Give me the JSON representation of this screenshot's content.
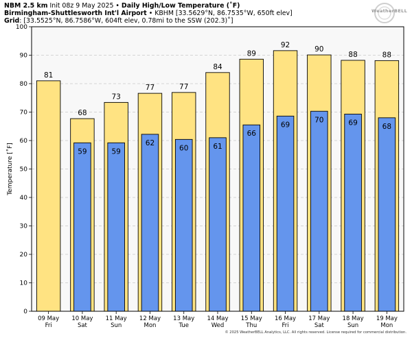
{
  "header": {
    "line1_bold": "NBM 2.5 km",
    "line1_init": " Init 08z 9 May 2025 • ",
    "line1_title": "Daily High/Low Temperature (˚F)",
    "line2_bold": "Birmingham-Shuttlesworth Int'l Airport",
    "line2_rest": " • KBHM [33.5629°N, 86.7535°W, 650ft elev]",
    "line3_bold": "Grid",
    "line3_rest": ": [33.5525°N, 86.7586°W, 604ft elev, 0.78mi to the SSW (202.3)˚]"
  },
  "logo": {
    "text": "WeatherBELL"
  },
  "copyright": "© 2025 WeatherBELL Analytics, LLC. All rights reserved. License required for commercial distribution.",
  "colors": {
    "high": "#ffe382",
    "low": "#6495ed",
    "plot_bg": "#f8f8f8",
    "grid": "#c8c8c8"
  },
  "chart_data": {
    "type": "bar",
    "ylabel": "Temperature [˚F]",
    "ylim": [
      0,
      100
    ],
    "yticks": [
      0,
      10,
      20,
      30,
      40,
      50,
      60,
      70,
      80,
      90,
      100
    ],
    "grid": true,
    "categories": [
      {
        "date": "09 May",
        "day": "Fri"
      },
      {
        "date": "10 May",
        "day": "Sat"
      },
      {
        "date": "11 May",
        "day": "Sun"
      },
      {
        "date": "12 May",
        "day": "Mon"
      },
      {
        "date": "13 May",
        "day": "Tue"
      },
      {
        "date": "14 May",
        "day": "Wed"
      },
      {
        "date": "15 May",
        "day": "Thu"
      },
      {
        "date": "16 May",
        "day": "Fri"
      },
      {
        "date": "17 May",
        "day": "Sat"
      },
      {
        "date": "18 May",
        "day": "Sun"
      },
      {
        "date": "19 May",
        "day": "Mon"
      }
    ],
    "series": [
      {
        "values": [
          81,
          67.7,
          73.4,
          76.6,
          76.9,
          83.9,
          88.6,
          91.6,
          90.1,
          88.2,
          88.1
        ],
        "labels": [
          "81",
          "68",
          "73",
          "77",
          "77",
          "84",
          "89",
          "92",
          "90",
          "88",
          "88"
        ]
      },
      {
        "values": [
          null,
          59.2,
          59.2,
          62.2,
          60.4,
          61,
          65.5,
          68.6,
          70.3,
          69.3,
          68
        ]
      }
    ]
  }
}
